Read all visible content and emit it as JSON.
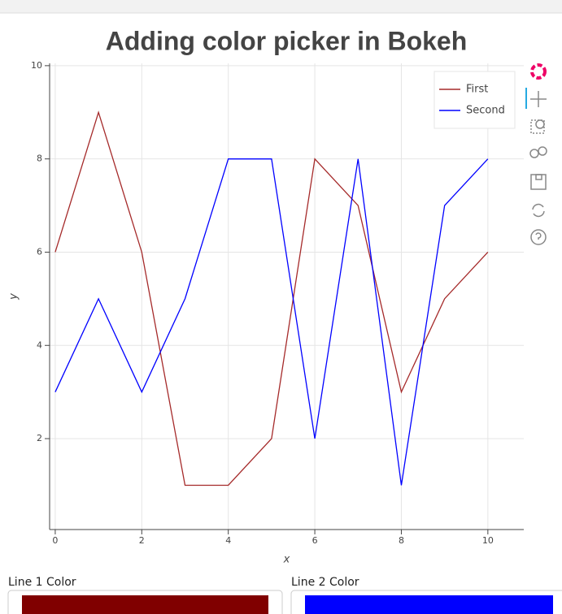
{
  "chart_data": {
    "type": "line",
    "title": "Adding color picker in Bokeh",
    "x_label": "x",
    "y_label": "y",
    "x": [
      0,
      1,
      2,
      3,
      4,
      5,
      6,
      7,
      8,
      9,
      10
    ],
    "series": [
      {
        "name": "First",
        "color": "#a52a2a",
        "values": [
          6,
          9,
          6,
          1,
          1,
          2,
          8,
          7,
          3,
          5,
          6
        ]
      },
      {
        "name": "Second",
        "color": "#0000ff",
        "values": [
          3,
          5,
          3,
          5,
          8,
          8,
          2,
          8,
          1,
          7,
          8
        ]
      }
    ],
    "xlim": [
      -0.13,
      10.83
    ],
    "ylim": [
      0.05,
      10.05
    ],
    "xticks": [
      0,
      2,
      4,
      6,
      8,
      10
    ],
    "yticks": [
      2,
      4,
      6,
      8,
      10
    ],
    "grid": true,
    "legend": "top-right",
    "widgets": [
      {
        "label": "Line 1 Color",
        "color": "#800000"
      },
      {
        "label": "Line 2 Color",
        "color": "#0000ff"
      }
    ]
  }
}
